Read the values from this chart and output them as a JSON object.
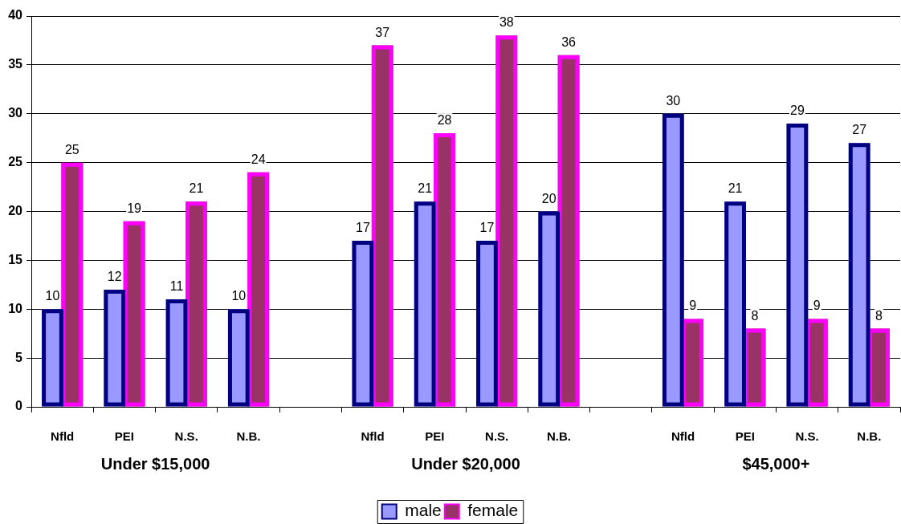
{
  "chart_data": {
    "type": "bar",
    "categories": [
      "Nfld",
      "PEI",
      "N.S.",
      "N.B.",
      null,
      "Nfld",
      "PEI",
      "N.S.",
      "N.B.",
      null,
      "Nfld",
      "PEI",
      "N.S.",
      "N.B."
    ],
    "series": [
      {
        "name": "male",
        "color": "#9999ff",
        "values": [
          10,
          12,
          11,
          10,
          null,
          17,
          21,
          17,
          20,
          null,
          30,
          21,
          29,
          27
        ]
      },
      {
        "name": "female",
        "color": "#993366",
        "values": [
          25,
          19,
          21,
          24,
          null,
          37,
          28,
          38,
          36,
          null,
          9,
          8,
          9,
          8
        ]
      }
    ],
    "ylim": [
      0,
      40
    ],
    "yticks": [
      0,
      5,
      10,
      15,
      20,
      25,
      30,
      35,
      40
    ],
    "grid": "y",
    "legend": "bottom",
    "data_labels": true,
    "annotations": [
      "Under $15,000",
      "Under $20,000",
      "$45,000+"
    ]
  }
}
